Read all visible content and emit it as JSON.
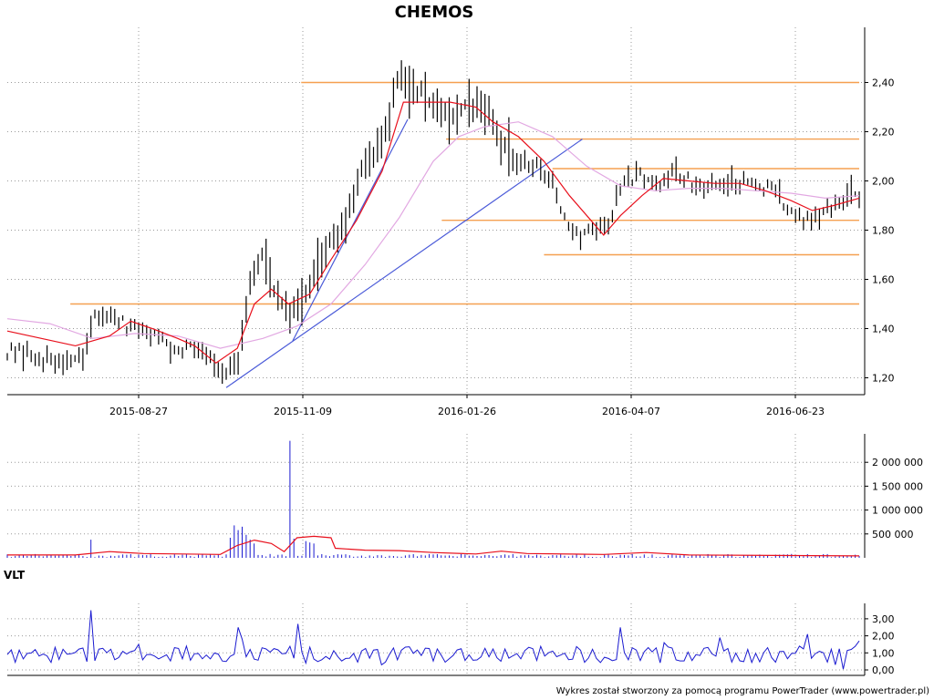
{
  "title": "CHEMOS",
  "footer": "Wykres został stworzony za pomocą programu PowerTrader (www.powertrader.pl)",
  "colors": {
    "price_bar": "#000000",
    "ma_short": "#e8101c",
    "ma_long": "#e2a8e2",
    "trend_line": "#4a5ad8",
    "support_resistance": "#f5a050",
    "volume_bar": "#1a1ad0",
    "volume_ma": "#e8101c",
    "vlt_line": "#1a1ad0",
    "grid": "#9a9a9a",
    "axis": "#000000"
  },
  "chart_data": [
    {
      "panel": "price",
      "type": "bar",
      "title": "CHEMOS",
      "x_tick_labels": [
        "2015-08-27",
        "2015-11-09",
        "2016-01-26",
        "2016-04-07",
        "2016-06-23"
      ],
      "y_tick_labels": [
        "2,40",
        "2,20",
        "2,00",
        "1,80",
        "1,60",
        "1,40",
        "1,20"
      ],
      "ylim": [
        1.15,
        2.6
      ],
      "grid": true,
      "price_path": [
        [
          0,
          1.31
        ],
        [
          0.03,
          1.29
        ],
        [
          0.06,
          1.26
        ],
        [
          0.09,
          1.27
        ],
        [
          0.1,
          1.44
        ],
        [
          0.12,
          1.46
        ],
        [
          0.14,
          1.4
        ],
        [
          0.16,
          1.39
        ],
        [
          0.18,
          1.36
        ],
        [
          0.2,
          1.32
        ],
        [
          0.22,
          1.33
        ],
        [
          0.235,
          1.3
        ],
        [
          0.255,
          1.22
        ],
        [
          0.27,
          1.24
        ],
        [
          0.285,
          1.58
        ],
        [
          0.3,
          1.73
        ],
        [
          0.315,
          1.55
        ],
        [
          0.33,
          1.46
        ],
        [
          0.345,
          1.52
        ],
        [
          0.36,
          1.63
        ],
        [
          0.38,
          1.74
        ],
        [
          0.4,
          1.88
        ],
        [
          0.42,
          2.06
        ],
        [
          0.44,
          2.16
        ],
        [
          0.46,
          2.44
        ],
        [
          0.48,
          2.36
        ],
        [
          0.5,
          2.3
        ],
        [
          0.52,
          2.27
        ],
        [
          0.54,
          2.3
        ],
        [
          0.56,
          2.28
        ],
        [
          0.58,
          2.14
        ],
        [
          0.6,
          2.08
        ],
        [
          0.62,
          2.06
        ],
        [
          0.64,
          1.98
        ],
        [
          0.66,
          1.8
        ],
        [
          0.675,
          1.76
        ],
        [
          0.69,
          1.82
        ],
        [
          0.705,
          1.8
        ],
        [
          0.72,
          1.98
        ],
        [
          0.74,
          2.02
        ],
        [
          0.76,
          1.98
        ],
        [
          0.78,
          2.04
        ],
        [
          0.8,
          2.0
        ],
        [
          0.82,
          1.98
        ],
        [
          0.84,
          1.96
        ],
        [
          0.86,
          1.98
        ],
        [
          0.88,
          2.0
        ],
        [
          0.9,
          1.96
        ],
        [
          0.92,
          1.88
        ],
        [
          0.935,
          1.82
        ],
        [
          0.95,
          1.86
        ],
        [
          0.97,
          1.9
        ],
        [
          0.99,
          1.96
        ],
        [
          1.0,
          1.94
        ]
      ],
      "ma_short_path": [
        [
          0,
          1.39
        ],
        [
          0.04,
          1.36
        ],
        [
          0.08,
          1.33
        ],
        [
          0.12,
          1.37
        ],
        [
          0.145,
          1.43
        ],
        [
          0.17,
          1.4
        ],
        [
          0.2,
          1.36
        ],
        [
          0.22,
          1.33
        ],
        [
          0.245,
          1.26
        ],
        [
          0.27,
          1.32
        ],
        [
          0.29,
          1.5
        ],
        [
          0.31,
          1.56
        ],
        [
          0.33,
          1.5
        ],
        [
          0.355,
          1.54
        ],
        [
          0.38,
          1.68
        ],
        [
          0.41,
          1.84
        ],
        [
          0.44,
          2.04
        ],
        [
          0.465,
          2.32
        ],
        [
          0.49,
          2.32
        ],
        [
          0.52,
          2.32
        ],
        [
          0.55,
          2.3
        ],
        [
          0.57,
          2.24
        ],
        [
          0.6,
          2.18
        ],
        [
          0.63,
          2.08
        ],
        [
          0.66,
          1.94
        ],
        [
          0.685,
          1.84
        ],
        [
          0.7,
          1.78
        ],
        [
          0.72,
          1.86
        ],
        [
          0.745,
          1.94
        ],
        [
          0.77,
          2.01
        ],
        [
          0.8,
          2.0
        ],
        [
          0.83,
          1.99
        ],
        [
          0.86,
          1.99
        ],
        [
          0.89,
          1.96
        ],
        [
          0.92,
          1.92
        ],
        [
          0.945,
          1.88
        ],
        [
          0.97,
          1.9
        ],
        [
          1.0,
          1.93
        ]
      ],
      "ma_long_path": [
        [
          0,
          1.44
        ],
        [
          0.05,
          1.42
        ],
        [
          0.1,
          1.36
        ],
        [
          0.15,
          1.38
        ],
        [
          0.2,
          1.37
        ],
        [
          0.25,
          1.32
        ],
        [
          0.3,
          1.36
        ],
        [
          0.34,
          1.41
        ],
        [
          0.38,
          1.5
        ],
        [
          0.42,
          1.66
        ],
        [
          0.46,
          1.85
        ],
        [
          0.5,
          2.08
        ],
        [
          0.53,
          2.18
        ],
        [
          0.56,
          2.22
        ],
        [
          0.6,
          2.24
        ],
        [
          0.64,
          2.18
        ],
        [
          0.68,
          2.06
        ],
        [
          0.72,
          1.98
        ],
        [
          0.76,
          1.96
        ],
        [
          0.8,
          1.97
        ],
        [
          0.84,
          1.97
        ],
        [
          0.88,
          1.96
        ],
        [
          0.92,
          1.95
        ],
        [
          0.96,
          1.93
        ],
        [
          1.0,
          1.94
        ]
      ],
      "trend_lines": [
        [
          [
            0.257,
            1.16
          ],
          [
            0.675,
            2.17
          ]
        ],
        [
          [
            0.335,
            1.35
          ],
          [
            0.47,
            2.25
          ]
        ]
      ],
      "support_resistance_levels": [
        {
          "value": 2.4,
          "from": 0.345,
          "to": 1.0
        },
        {
          "value": 2.17,
          "from": 0.515,
          "to": 1.0
        },
        {
          "value": 2.05,
          "from": 0.64,
          "to": 1.0
        },
        {
          "value": 1.84,
          "from": 0.51,
          "to": 1.0
        },
        {
          "value": 1.7,
          "from": 0.63,
          "to": 1.0
        },
        {
          "value": 1.5,
          "from": 0.074,
          "to": 1.0
        }
      ],
      "n_bars": 215,
      "seed": 12345
    },
    {
      "panel": "volume",
      "type": "bar",
      "y_tick_labels": [
        "2 000 000",
        "1 500 000",
        "1 000 000",
        "500 000"
      ],
      "ylim": [
        0,
        2500000
      ],
      "grid": true,
      "volume_baseline": 40000,
      "spikes": [
        {
          "at": 0.1,
          "value": 380000
        },
        {
          "at": 0.262,
          "value": 420000
        },
        {
          "at": 0.266,
          "value": 680000
        },
        {
          "at": 0.271,
          "value": 580000
        },
        {
          "at": 0.276,
          "value": 650000
        },
        {
          "at": 0.281,
          "value": 480000
        },
        {
          "at": 0.286,
          "value": 380000
        },
        {
          "at": 0.291,
          "value": 300000
        },
        {
          "at": 0.33,
          "value": 990000
        },
        {
          "at": 0.334,
          "value": 2450000
        },
        {
          "at": 0.338,
          "value": 400000
        },
        {
          "at": 0.35,
          "value": 350000
        },
        {
          "at": 0.356,
          "value": 320000
        },
        {
          "at": 0.36,
          "value": 300000
        }
      ],
      "volume_ma_path": [
        [
          0,
          60000
        ],
        [
          0.08,
          60000
        ],
        [
          0.12,
          130000
        ],
        [
          0.16,
          90000
        ],
        [
          0.25,
          70000
        ],
        [
          0.27,
          260000
        ],
        [
          0.29,
          370000
        ],
        [
          0.31,
          300000
        ],
        [
          0.325,
          130000
        ],
        [
          0.34,
          420000
        ],
        [
          0.36,
          450000
        ],
        [
          0.38,
          420000
        ],
        [
          0.385,
          200000
        ],
        [
          0.42,
          160000
        ],
        [
          0.46,
          150000
        ],
        [
          0.5,
          110000
        ],
        [
          0.55,
          80000
        ],
        [
          0.58,
          140000
        ],
        [
          0.61,
          90000
        ],
        [
          0.7,
          70000
        ],
        [
          0.75,
          110000
        ],
        [
          0.8,
          60000
        ],
        [
          0.9,
          50000
        ],
        [
          1.0,
          40000
        ]
      ]
    },
    {
      "panel": "VLT",
      "type": "line",
      "title": "VLT",
      "y_tick_labels": [
        "3,00",
        "2,00",
        "1,00",
        "0,00"
      ],
      "ylim": [
        0,
        3.7
      ],
      "grid": true,
      "vlt_peaks": [
        [
          0.1,
          3.5
        ],
        [
          0.125,
          0.6
        ],
        [
          0.155,
          1.5
        ],
        [
          0.27,
          2.5
        ],
        [
          0.275,
          1.8
        ],
        [
          0.34,
          2.7
        ],
        [
          0.352,
          0.4
        ],
        [
          0.437,
          0.3
        ],
        [
          0.72,
          2.5
        ],
        [
          0.77,
          1.6
        ],
        [
          0.835,
          1.9
        ],
        [
          0.94,
          2.1
        ],
        [
          0.97,
          0.3
        ],
        [
          0.98,
          0.05
        ],
        [
          1.0,
          1.7
        ]
      ],
      "n_points": 215,
      "seed": 678
    }
  ]
}
